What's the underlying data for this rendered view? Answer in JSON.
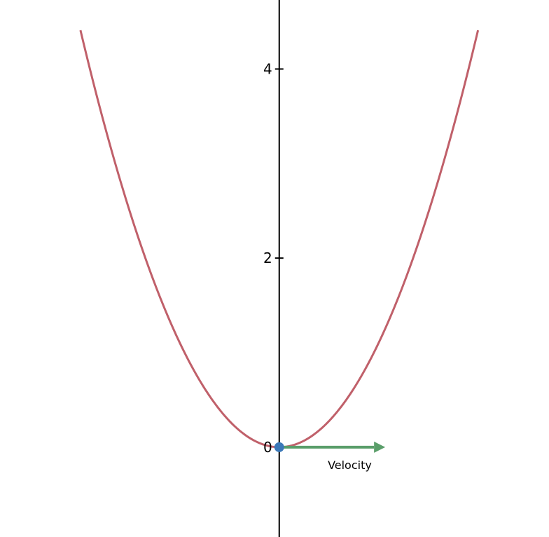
{
  "chart_data": {
    "type": "line",
    "title": "",
    "xlabel": "",
    "ylabel": "",
    "xlim": [
      -2.95,
      2.85
    ],
    "ylim": [
      -0.95,
      4.73
    ],
    "y_ticks": [
      0,
      2,
      4
    ],
    "y_tick_labels": [
      "0",
      "2",
      "4"
    ],
    "series": [
      {
        "color": "#c0606a",
        "x": [
          -2.1,
          -1.8,
          -1.5,
          -1.2,
          -0.9,
          -0.6,
          -0.3,
          0.0,
          0.3,
          0.6,
          0.9,
          1.2,
          1.5,
          1.8,
          2.1
        ],
        "y": [
          4.41,
          3.24,
          2.25,
          1.44,
          0.81,
          0.36,
          0.09,
          0.0,
          0.09,
          0.36,
          0.81,
          1.44,
          2.25,
          3.24,
          4.41
        ]
      }
    ],
    "point": {
      "x": 0,
      "y": 0,
      "color": "#3b78b8"
    },
    "vector": {
      "label": "Velocity",
      "from": [
        0,
        0
      ],
      "to": [
        1.12,
        0
      ],
      "color": "#5a9e6a"
    }
  }
}
